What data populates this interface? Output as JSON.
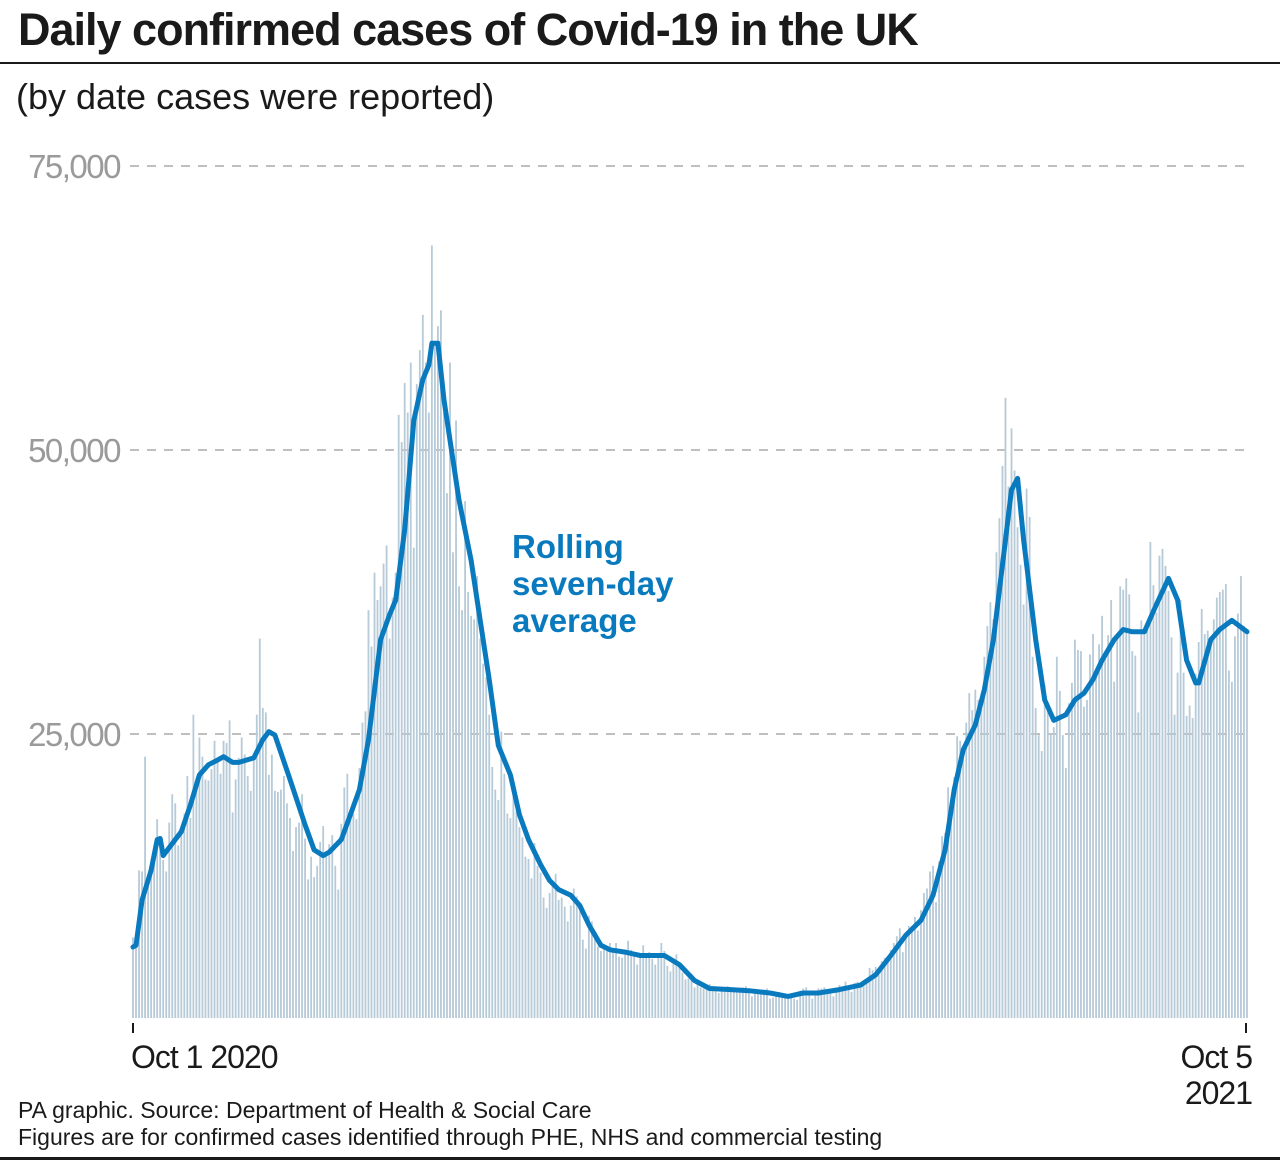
{
  "title": "Daily confirmed cases of Covid-19 in the UK",
  "subtitle": "(by date cases were reported)",
  "footer": {
    "source": "PA graphic. Source: Department of Health & Social Care",
    "note": "Figures are for confirmed cases identified through PHE, NHS and commercial testing"
  },
  "colors": {
    "bars": "#b7cad8",
    "average_line": "#0a7abf",
    "annotation": "#0a7abf",
    "grid": "#aaaaaa"
  },
  "chart_data": {
    "type": "bar",
    "title": "Daily confirmed cases of Covid-19 in the UK",
    "subtitle": "(by date cases were reported)",
    "xlabel": "",
    "ylabel": "",
    "ylim": [
      0,
      75000
    ],
    "yticks": [
      25000,
      50000,
      75000
    ],
    "ytick_labels": [
      "25,000",
      "50,000",
      "75,000"
    ],
    "grid": "horizontal dashed",
    "x_tick_labels": [
      {
        "line1": "Oct 1 2020",
        "line2": ""
      },
      {
        "line1": "Oct 5",
        "line2": "2021"
      }
    ],
    "start_date": "2020-10-01",
    "end_date": "2021-10-05",
    "daily_cases": {
      "start_date": "2020-10-01",
      "values": [
        7100,
        6900,
        13000,
        12900,
        23000,
        12600,
        12900,
        14200,
        17500,
        16000,
        13900,
        12900,
        17200,
        19700,
        18900,
        15200,
        16700,
        18000,
        21300,
        17600,
        26700,
        21000,
        24700,
        23000,
        21000,
        20900,
        21900,
        24400,
        22900,
        21500,
        24400,
        24200,
        26200,
        18100,
        21000,
        22900,
        24700,
        23200,
        21300,
        20000,
        22900,
        26700,
        33400,
        27300,
        26900,
        21400,
        23200,
        20000,
        19900,
        20100,
        21300,
        18900,
        17600,
        14700,
        16800,
        17200,
        19700,
        15800,
        12200,
        14200,
        12400,
        13400,
        15500,
        16900,
        14500,
        15300,
        16100,
        13400,
        11300,
        17100,
        20300,
        21500,
        18400,
        18000,
        17500,
        22000,
        26000,
        27000,
        35900,
        32700,
        39200,
        36800,
        38000,
        40000,
        41600,
        33400,
        37000,
        39200,
        53100,
        50700,
        55900,
        53300,
        57700,
        41400,
        55800,
        58800,
        61900,
        57700,
        53300,
        68000,
        59600,
        60900,
        62300,
        53300,
        46200,
        57700,
        41000,
        52600,
        38000,
        35900,
        45500,
        37500,
        35400,
        35100,
        38900,
        33400,
        31200,
        30000,
        26700,
        22100,
        20100,
        19200,
        25200,
        21500,
        18000,
        17600,
        20500,
        18200,
        16800,
        15900,
        14200,
        14000,
        12300,
        15400,
        13400,
        12800,
        10600,
        9700,
        11000,
        12100,
        12700,
        10400,
        10600,
        9800,
        8500,
        9900,
        11400,
        10700,
        9400,
        6900,
        6100,
        9000,
        8500,
        7400,
        6300,
        5900,
        6100,
        6200,
        6600,
        6100,
        6600,
        5400,
        5300,
        5900,
        6800,
        6000,
        5700,
        4700,
        5500,
        6400,
        5700,
        5800,
        5200,
        4700,
        5300,
        6600,
        5900,
        4600,
        4100,
        5100,
        5600,
        4800,
        4000,
        3400,
        3500,
        3900,
        2700,
        3100,
        2700,
        2600,
        2900,
        3000,
        2600,
        2400,
        2200,
        2500,
        2600,
        2800,
        2700,
        2300,
        2300,
        2500,
        2700,
        2800,
        2200,
        1900,
        2300,
        2300,
        2400,
        2500,
        2600,
        1700,
        1800,
        1900,
        2300,
        2200,
        2000,
        1800,
        2100,
        1700,
        1600,
        2400,
        2600,
        2700,
        2300,
        1700,
        2000,
        2600,
        2600,
        2700,
        2500,
        2500,
        1900,
        2500,
        2900,
        2800,
        3200,
        2700,
        2300,
        3100,
        3200,
        3100,
        3200,
        3300,
        4400,
        4200,
        4500,
        3800,
        5000,
        5300,
        5400,
        6000,
        6600,
        7200,
        7900,
        5800,
        7500,
        8100,
        8100,
        8900,
        7700,
        9500,
        11000,
        11400,
        12900,
        13400,
        10200,
        13800,
        16000,
        16300,
        20300,
        17200,
        21200,
        24800,
        24400,
        22800,
        26000,
        28600,
        27100,
        28900,
        28000,
        27200,
        31800,
        34500,
        36600,
        35100,
        41000,
        44000,
        48600,
        54600,
        46800,
        51900,
        48200,
        43200,
        39900,
        36400,
        46600,
        44100,
        31800,
        27300,
        24900,
        23500,
        29300,
        27700,
        25100,
        25600,
        31800,
        28800,
        24900,
        22000,
        27700,
        29500,
        33300,
        32400,
        32300,
        27400,
        28000,
        32000,
        33800,
        30000,
        32900,
        35400,
        32300,
        33700,
        36800,
        29600,
        33400,
        38000,
        37700,
        38700,
        37300,
        32300,
        31900,
        26900,
        35000,
        33800,
        34200,
        41900,
        38100,
        35700,
        40700,
        41300,
        39800,
        37600,
        33500,
        26700,
        30400,
        36800,
        30400,
        26600,
        27500,
        26400,
        30300,
        33100,
        36000,
        33800,
        34100,
        33100,
        35100,
        37000,
        37500,
        37700,
        38200,
        30600,
        29600,
        33600,
        35600,
        38900,
        34500,
        34100
      ]
    },
    "series": [
      {
        "name": "Rolling seven-day average",
        "type": "line",
        "points": [
          [
            "2020-10-01",
            6250
          ],
          [
            "2020-10-02",
            6400
          ],
          [
            "2020-10-04",
            10400
          ],
          [
            "2020-10-07",
            13000
          ],
          [
            "2020-10-09",
            15700
          ],
          [
            "2020-10-10",
            15800
          ],
          [
            "2020-10-11",
            14300
          ],
          [
            "2020-10-13",
            15000
          ],
          [
            "2020-10-17",
            16400
          ],
          [
            "2020-10-20",
            18750
          ],
          [
            "2020-10-23",
            21400
          ],
          [
            "2020-10-26",
            22300
          ],
          [
            "2020-10-29",
            22700
          ],
          [
            "2020-10-31",
            23000
          ],
          [
            "2020-11-03",
            22500
          ],
          [
            "2020-11-05",
            22500
          ],
          [
            "2020-11-10",
            22900
          ],
          [
            "2020-11-13",
            24500
          ],
          [
            "2020-11-15",
            25200
          ],
          [
            "2020-11-17",
            24900
          ],
          [
            "2020-11-22",
            21000
          ],
          [
            "2020-11-27",
            17000
          ],
          [
            "2020-11-30",
            14800
          ],
          [
            "2020-12-03",
            14300
          ],
          [
            "2020-12-05",
            14600
          ],
          [
            "2020-12-09",
            15700
          ],
          [
            "2020-12-12",
            17900
          ],
          [
            "2020-12-15",
            20100
          ],
          [
            "2020-12-18",
            24500
          ],
          [
            "2020-12-22",
            33300
          ],
          [
            "2020-12-25",
            35500
          ],
          [
            "2020-12-27",
            36800
          ],
          [
            "2020-12-30",
            43000
          ],
          [
            "2021-01-02",
            52600
          ],
          [
            "2021-01-05",
            56200
          ],
          [
            "2021-01-07",
            57500
          ],
          [
            "2021-01-08",
            59400
          ],
          [
            "2021-01-10",
            59400
          ],
          [
            "2021-01-12",
            54400
          ],
          [
            "2021-01-15",
            49100
          ],
          [
            "2021-01-17",
            45600
          ],
          [
            "2021-01-21",
            40300
          ],
          [
            "2021-01-24",
            35000
          ],
          [
            "2021-01-27",
            29800
          ],
          [
            "2021-01-30",
            24000
          ],
          [
            "2021-02-03",
            21400
          ],
          [
            "2021-02-06",
            17900
          ],
          [
            "2021-02-09",
            15700
          ],
          [
            "2021-02-13",
            13500
          ],
          [
            "2021-02-16",
            12100
          ],
          [
            "2021-02-19",
            11300
          ],
          [
            "2021-02-23",
            10800
          ],
          [
            "2021-02-26",
            9900
          ],
          [
            "2021-03-01",
            8200
          ],
          [
            "2021-03-05",
            6400
          ],
          [
            "2021-03-08",
            6000
          ],
          [
            "2021-03-13",
            5800
          ],
          [
            "2021-03-18",
            5500
          ],
          [
            "2021-03-26",
            5500
          ],
          [
            "2021-03-31",
            4700
          ],
          [
            "2021-04-05",
            3300
          ],
          [
            "2021-04-10",
            2600
          ],
          [
            "2021-04-17",
            2500
          ],
          [
            "2021-04-23",
            2400
          ],
          [
            "2021-04-30",
            2200
          ],
          [
            "2021-05-06",
            1900
          ],
          [
            "2021-05-11",
            2200
          ],
          [
            "2021-05-16",
            2200
          ],
          [
            "2021-05-23",
            2500
          ],
          [
            "2021-05-30",
            2900
          ],
          [
            "2021-06-04",
            3800
          ],
          [
            "2021-06-09",
            5500
          ],
          [
            "2021-06-14",
            7300
          ],
          [
            "2021-06-19",
            8600
          ],
          [
            "2021-06-23",
            10800
          ],
          [
            "2021-06-27",
            14800
          ],
          [
            "2021-06-30",
            20100
          ],
          [
            "2021-07-03",
            23600
          ],
          [
            "2021-07-07",
            25800
          ],
          [
            "2021-07-10",
            28900
          ],
          [
            "2021-07-13",
            33300
          ],
          [
            "2021-07-17",
            42100
          ],
          [
            "2021-07-19",
            46500
          ],
          [
            "2021-07-21",
            47500
          ],
          [
            "2021-07-23",
            42100
          ],
          [
            "2021-07-27",
            33300
          ],
          [
            "2021-07-30",
            28000
          ],
          [
            "2021-08-02",
            26200
          ],
          [
            "2021-08-06",
            26700
          ],
          [
            "2021-08-09",
            28000
          ],
          [
            "2021-08-12",
            28600
          ],
          [
            "2021-08-15",
            29800
          ],
          [
            "2021-08-18",
            31500
          ],
          [
            "2021-08-22",
            33300
          ],
          [
            "2021-08-25",
            34200
          ],
          [
            "2021-08-28",
            34000
          ],
          [
            "2021-09-01",
            34000
          ],
          [
            "2021-09-05",
            36400
          ],
          [
            "2021-09-09",
            38700
          ],
          [
            "2021-09-12",
            36800
          ],
          [
            "2021-09-15",
            31500
          ],
          [
            "2021-09-18",
            29500
          ],
          [
            "2021-09-19",
            29500
          ],
          [
            "2021-09-23",
            33300
          ],
          [
            "2021-09-26",
            34200
          ],
          [
            "2021-09-30",
            35000
          ],
          [
            "2021-10-02",
            34600
          ],
          [
            "2021-10-05",
            34000
          ]
        ]
      }
    ],
    "annotation": [
      "Rolling",
      "seven-day",
      "average"
    ]
  }
}
